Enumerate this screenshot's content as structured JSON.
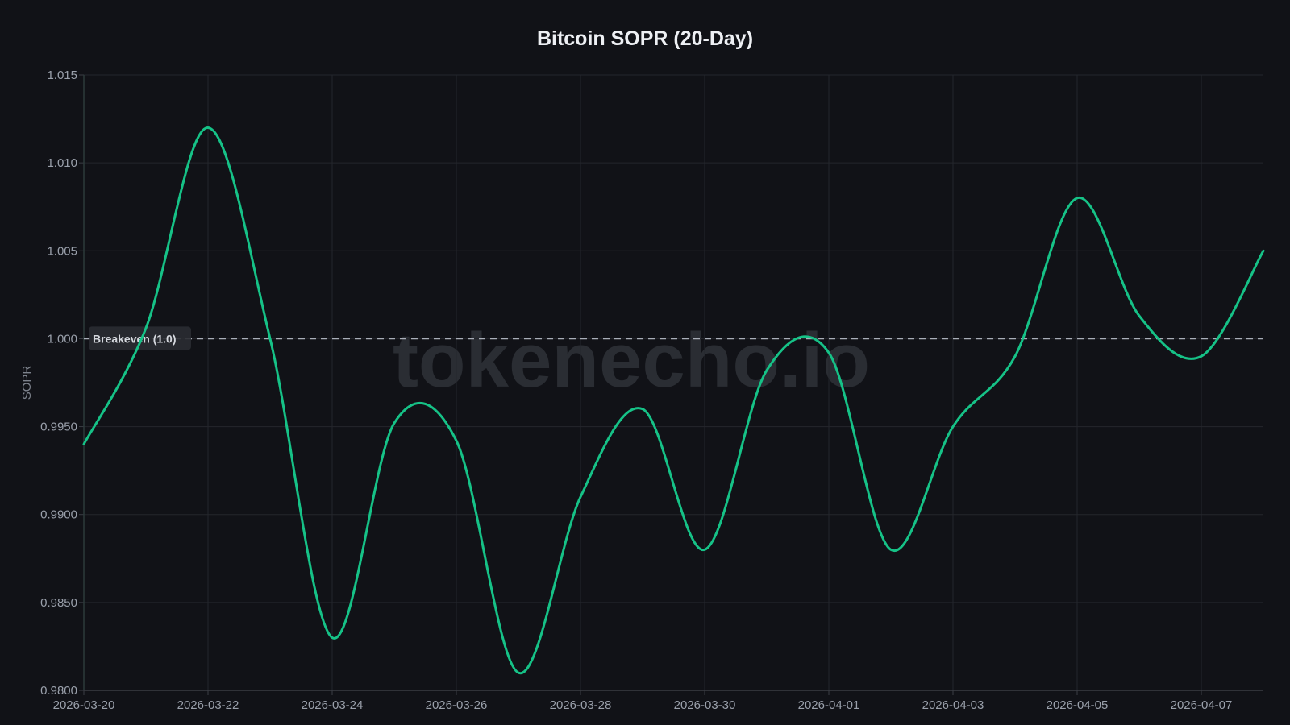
{
  "title": "Bitcoin SOPR (20-Day)",
  "watermark": "tokenecho.io",
  "colors": {
    "background": "#111217",
    "line": "#16c287",
    "grid": "#24262c",
    "breakeven": "#a9aeb8",
    "axis": "#3a3d44"
  },
  "chart_data": {
    "type": "line",
    "title": "Bitcoin SOPR (20-Day)",
    "xlabel": "",
    "ylabel": "SOPR",
    "ylim": [
      0.98,
      1.015
    ],
    "yticks": [
      "1.015",
      "1.010",
      "1.005",
      "1.000",
      "0.9950",
      "0.9900",
      "0.9850",
      "0.9800"
    ],
    "ytick_values": [
      1.015,
      1.01,
      1.005,
      1.0,
      0.995,
      0.99,
      0.985,
      0.98
    ],
    "xticks": [
      "2026-03-20",
      "2026-03-22",
      "2026-03-24",
      "2026-03-26",
      "2026-03-28",
      "2026-03-30",
      "2026-04-01",
      "2026-04-03",
      "2026-04-05",
      "2026-04-07"
    ],
    "grid": true,
    "x": [
      "2026-03-20",
      "2026-03-21",
      "2026-03-22",
      "2026-03-23",
      "2026-03-24",
      "2026-03-25",
      "2026-03-26",
      "2026-03-27",
      "2026-03-28",
      "2026-03-29",
      "2026-03-30",
      "2026-03-31",
      "2026-04-01",
      "2026-04-02",
      "2026-04-03",
      "2026-04-04",
      "2026-04-05",
      "2026-04-06",
      "2026-04-07",
      "2026-04-08"
    ],
    "series": [
      {
        "name": "SOPR",
        "values": [
          0.994,
          1.0006,
          1.012,
          1.0,
          0.983,
          0.9952,
          0.9942,
          0.981,
          0.991,
          0.996,
          0.988,
          0.9982,
          0.9992,
          0.988,
          0.995,
          0.999,
          1.008,
          1.0013,
          0.999,
          1.005
        ]
      }
    ],
    "annotations": [
      {
        "type": "hline",
        "y": 1.0,
        "label": "Breakeven (1.0)",
        "style": "dashed"
      }
    ]
  }
}
